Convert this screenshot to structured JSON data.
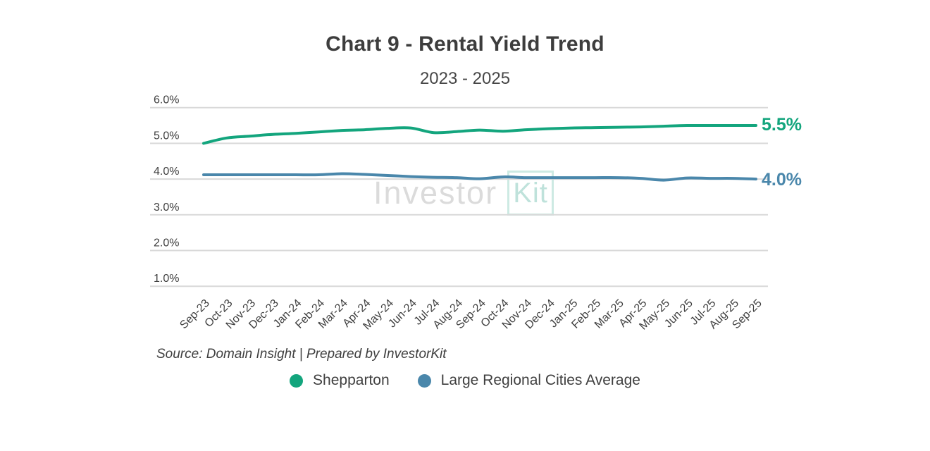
{
  "header": {
    "title": "Chart 9 - Rental Yield Trend",
    "subtitle": "2023 - 2025"
  },
  "watermark": {
    "text": "Investor",
    "boxed_text": "Kit"
  },
  "footer": {
    "source": "Source: Domain Insight | Prepared by InvestorKit"
  },
  "colors": {
    "shepparton_green": "#13a57d",
    "regional_blue": "#4a87ab",
    "gridline": "#d9d9d9",
    "axis_text": "#3f3f3f"
  },
  "legend": [
    {
      "label": "Shepparton",
      "color": "#13a57d"
    },
    {
      "label": "Large Regional Cities Average",
      "color": "#4a87ab"
    }
  ],
  "chart_data": {
    "type": "line",
    "title": "Chart 9 - Rental Yield Trend",
    "subtitle": "2023 - 2025",
    "x": [
      "Sep-23",
      "Oct-23",
      "Nov-23",
      "Dec-23",
      "Jan-24",
      "Feb-24",
      "Mar-24",
      "Apr-24",
      "May-24",
      "Jun-24",
      "Jul-24",
      "Aug-24",
      "Sep-24",
      "Oct-24",
      "Nov-24",
      "Dec-24",
      "Jan-25",
      "Feb-25",
      "Mar-25",
      "Apr-25",
      "May-25",
      "Jun-25",
      "Jul-25",
      "Aug-25",
      "Sep-25"
    ],
    "series": [
      {
        "name": "Shepparton",
        "color": "#13a57d",
        "end_label": "5.5%",
        "values": [
          5.0,
          5.15,
          5.2,
          5.25,
          5.28,
          5.32,
          5.36,
          5.38,
          5.42,
          5.43,
          5.3,
          5.33,
          5.37,
          5.34,
          5.38,
          5.41,
          5.43,
          5.44,
          5.45,
          5.46,
          5.48,
          5.5,
          5.5,
          5.5,
          5.5
        ]
      },
      {
        "name": "Large Regional Cities Average",
        "color": "#4a87ab",
        "end_label": "4.0%",
        "values": [
          4.12,
          4.12,
          4.12,
          4.12,
          4.12,
          4.12,
          4.15,
          4.13,
          4.1,
          4.07,
          4.05,
          4.04,
          4.01,
          4.06,
          4.04,
          4.04,
          4.04,
          4.04,
          4.04,
          4.02,
          3.97,
          4.03,
          4.02,
          4.02,
          4.0
        ]
      }
    ],
    "yticks": [
      {
        "label": "6.0%",
        "value": 6.0
      },
      {
        "label": "5.0%",
        "value": 5.0
      },
      {
        "label": "4.0%",
        "value": 4.0
      },
      {
        "label": "3.0%",
        "value": 3.0
      },
      {
        "label": "2.0%",
        "value": 2.0
      },
      {
        "label": "1.0%",
        "value": 1.0
      }
    ],
    "grid": true,
    "legend_position": "bottom"
  }
}
